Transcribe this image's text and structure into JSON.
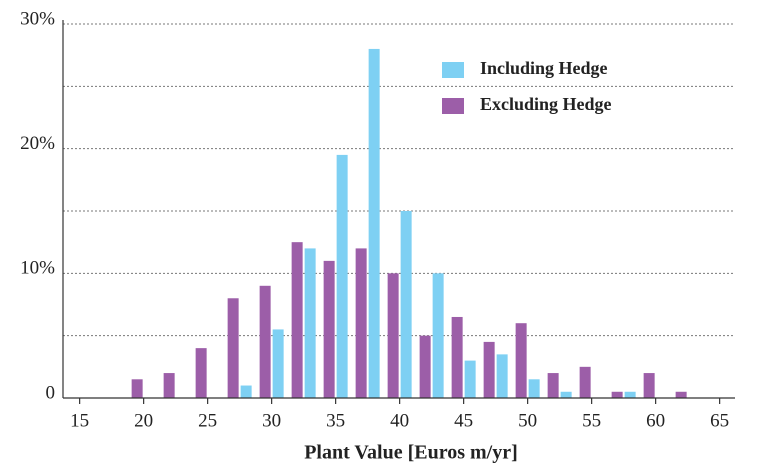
{
  "chart_data": {
    "type": "bar",
    "x_label": "Plant Value [Euros m/yr]",
    "x": [
      20,
      22.5,
      25,
      27.5,
      30,
      32.5,
      35,
      37.5,
      40,
      42.5,
      45,
      47.5,
      50,
      52.5,
      55,
      57.5,
      60,
      62.5
    ],
    "series": [
      {
        "name": "Including Hedge",
        "color": "#7ed0f3",
        "values": [
          0,
          0,
          0,
          1,
          5.5,
          12,
          19.5,
          28,
          15,
          10,
          3,
          3.5,
          1.5,
          0.5,
          0,
          0.5,
          0,
          0
        ]
      },
      {
        "name": "Excluding Hedge",
        "color": "#9c5ea8",
        "values": [
          1.5,
          2,
          4,
          8,
          9,
          12.5,
          11,
          12,
          10,
          5,
          6.5,
          4.5,
          6,
          2,
          2.5,
          0.5,
          2,
          0.5
        ]
      }
    ],
    "xlim": [
      13.7,
      66.2
    ],
    "xticks": [
      15,
      20,
      25,
      30,
      35,
      40,
      45,
      50,
      55,
      60,
      65
    ],
    "ylim": [
      0,
      30
    ],
    "yticks": [
      0,
      {
        "value": 10,
        "label": "10%"
      },
      {
        "value": 20,
        "label": "20%"
      },
      {
        "value": 30,
        "label": "30%"
      }
    ],
    "minor_yticks": [
      5,
      15,
      25
    ],
    "grid": true,
    "legend": "upper right"
  }
}
